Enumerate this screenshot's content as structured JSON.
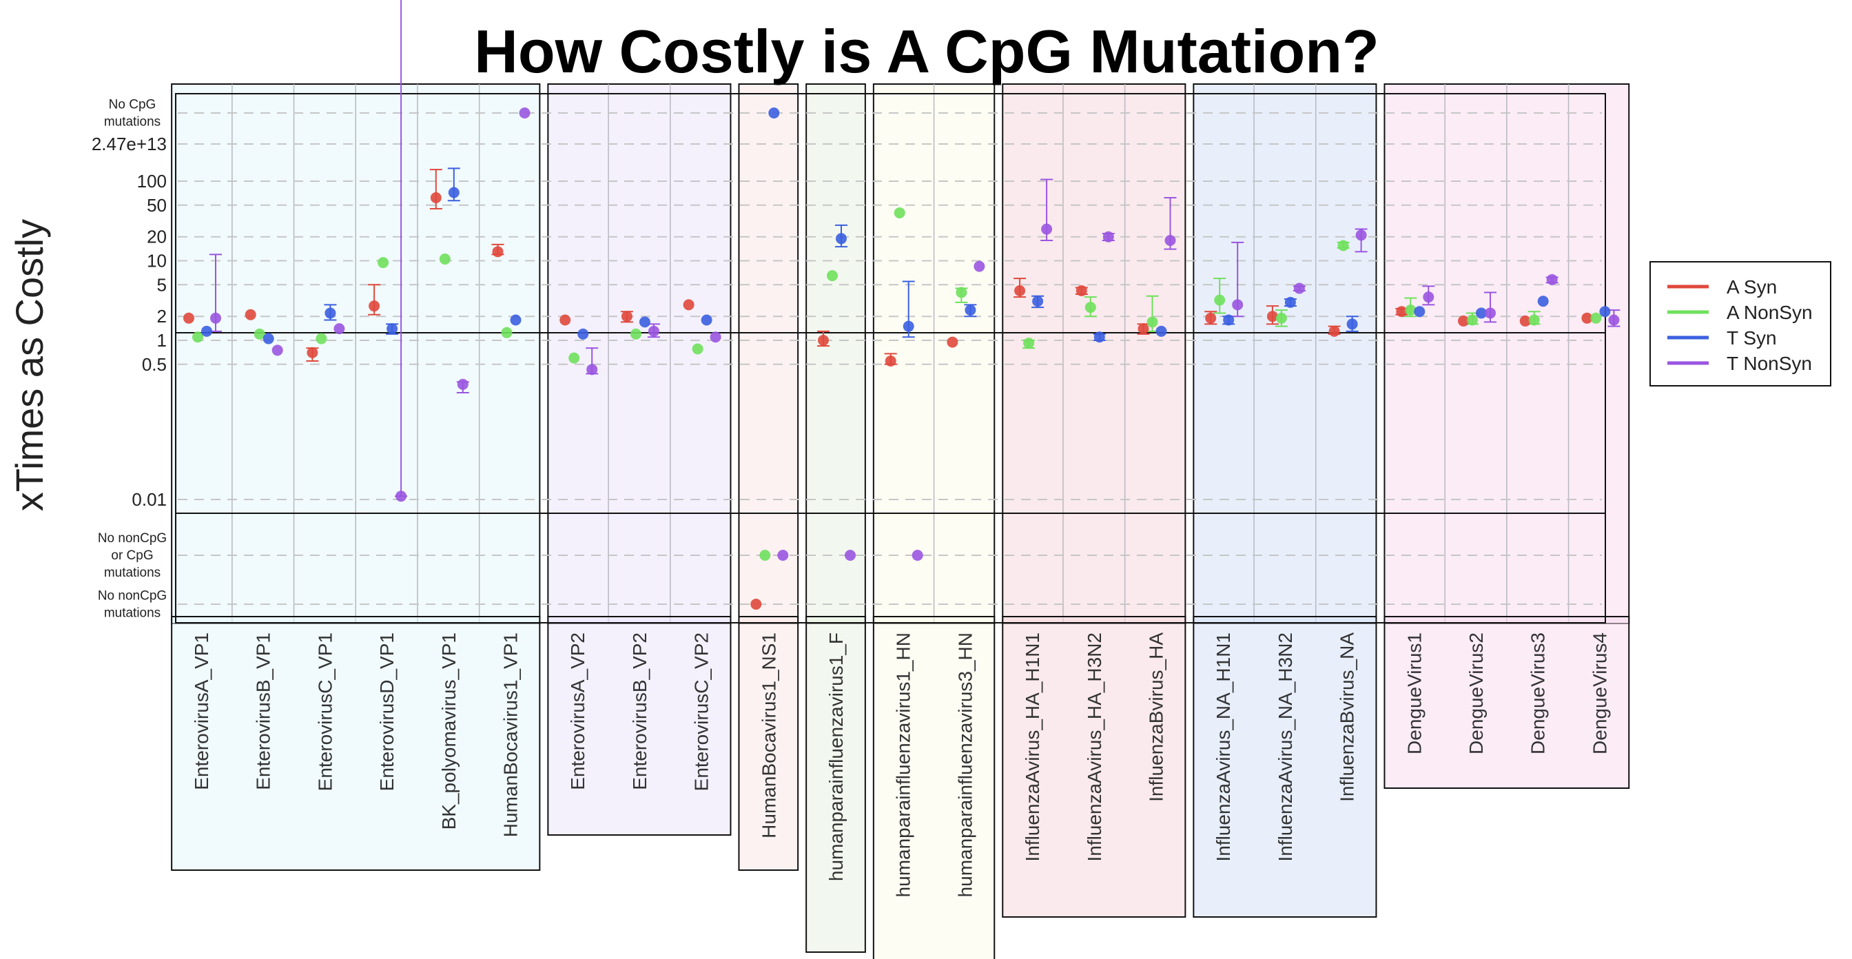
{
  "chart_data": {
    "type": "scatter",
    "title": "How Costly is A CpG Mutation?",
    "ylabel": "xTimes as Costly",
    "y_scale": "log",
    "yticks": [
      "0.01",
      "0.5",
      "1",
      "2",
      "5",
      "10",
      "20",
      "50",
      "100",
      "2.47e+13"
    ],
    "special_rows": [
      "No CpG mutations",
      "No nonCpG or  CpG mutations",
      "No nonCpG mutations"
    ],
    "grid": true,
    "legend_position": "right",
    "series": [
      {
        "name": "A Syn",
        "color": "#e0483c"
      },
      {
        "name": "A NonSyn",
        "color": "#6fe05c"
      },
      {
        "name": "T Syn",
        "color": "#3b5fe0"
      },
      {
        "name": "T NonSyn",
        "color": "#9a55e0"
      }
    ],
    "groups": [
      {
        "color": "#e6f6fc",
        "categories": [
          "EnterovirusA_VP1",
          "EnterovirusB_VP1",
          "EnterovirusC_VP1",
          "EnterovirusD_VP1",
          "BK_polyomavirus_VP1",
          "HumanBocavirus1_VP1"
        ]
      },
      {
        "color": "#ebe6fb",
        "categories": [
          "EnterovirusA_VP2",
          "EnterovirusB_VP2",
          "EnterovirusC_VP2"
        ]
      },
      {
        "color": "#fae8e8",
        "categories": [
          "HumanBocavirus1_NS1"
        ]
      },
      {
        "color": "#e8f3e2",
        "categories": [
          "humanparainfluenzavirus1_F"
        ]
      },
      {
        "color": "#fbfbeb",
        "categories": [
          "humanparainfluenzavirus1_HN",
          "humanparainfluenzavirus3_HN"
        ]
      },
      {
        "color": "#f6d9de",
        "categories": [
          "InfluenzaAvirus_HA_H1N1",
          "InfluenzaAvirus_HA_H3N2",
          "InfluenzaBvirus_HA"
        ]
      },
      {
        "color": "#d6e2f8",
        "categories": [
          "InfluenzaAvirus_NA_H1N1",
          "InfluenzaAvirus_NA_H3N2",
          "InfluenzaBvirus_NA"
        ]
      },
      {
        "color": "#f7dcef",
        "categories": [
          "DengueVirus1",
          "DengueVirus2",
          "DengueVirus3",
          "DengueVirus4"
        ]
      }
    ],
    "points": [
      {
        "category": "EnterovirusA_VP1",
        "series": "A Syn",
        "y": 1.9
      },
      {
        "category": "EnterovirusA_VP1",
        "series": "A NonSyn",
        "y": 1.1
      },
      {
        "category": "EnterovirusA_VP1",
        "series": "T Syn",
        "y": 1.3
      },
      {
        "category": "EnterovirusA_VP1",
        "series": "T NonSyn",
        "y": 1.9,
        "lo": 1.3,
        "hi": 12
      },
      {
        "category": "EnterovirusB_VP1",
        "series": "A Syn",
        "y": 2.1
      },
      {
        "category": "EnterovirusB_VP1",
        "series": "A NonSyn",
        "y": 1.2
      },
      {
        "category": "EnterovirusB_VP1",
        "series": "T Syn",
        "y": 1.05
      },
      {
        "category": "EnterovirusB_VP1",
        "series": "T NonSyn",
        "y": 0.75
      },
      {
        "category": "EnterovirusC_VP1",
        "series": "A Syn",
        "y": 0.7,
        "lo": 0.55,
        "hi": 0.8
      },
      {
        "category": "EnterovirusC_VP1",
        "series": "A NonSyn",
        "y": 1.05
      },
      {
        "category": "EnterovirusC_VP1",
        "series": "T Syn",
        "y": 2.2,
        "lo": 1.8,
        "hi": 2.8
      },
      {
        "category": "EnterovirusC_VP1",
        "series": "T NonSyn",
        "y": 1.4
      },
      {
        "category": "EnterovirusD_VP1",
        "series": "A Syn",
        "y": 2.7,
        "lo": 2.1,
        "hi": 5
      },
      {
        "category": "EnterovirusD_VP1",
        "series": "A NonSyn",
        "y": 9.5
      },
      {
        "category": "EnterovirusD_VP1",
        "series": "T Syn",
        "y": 1.4,
        "lo": 1.2,
        "hi": 1.6
      },
      {
        "category": "EnterovirusD_VP1",
        "series": "T NonSyn",
        "y": 0.011,
        "lo": 0.011,
        "hi": 24000
      },
      {
        "category": "BK_polyomavirus_VP1",
        "series": "A Syn",
        "y": 62,
        "lo": 45,
        "hi": 140
      },
      {
        "category": "BK_polyomavirus_VP1",
        "series": "A NonSyn",
        "y": 10.5
      },
      {
        "category": "BK_polyomavirus_VP1",
        "series": "T Syn",
        "y": 72,
        "lo": 57,
        "hi": 145
      },
      {
        "category": "BK_polyomavirus_VP1",
        "series": "T NonSyn",
        "y": 0.28,
        "lo": 0.22,
        "hi": 0.3
      },
      {
        "category": "HumanBocavirus1_VP1",
        "series": "A Syn",
        "y": 13,
        "lo": 12,
        "hi": 16
      },
      {
        "category": "HumanBocavirus1_VP1",
        "series": "A NonSyn",
        "y": 1.25
      },
      {
        "category": "HumanBocavirus1_VP1",
        "series": "T Syn",
        "y": 1.8
      },
      {
        "category": "HumanBocavirus1_VP1",
        "series": "T NonSyn",
        "special": "No CpG mutations"
      },
      {
        "category": "EnterovirusA_VP2",
        "series": "A Syn",
        "y": 1.8
      },
      {
        "category": "EnterovirusA_VP2",
        "series": "A NonSyn",
        "y": 0.6
      },
      {
        "category": "EnterovirusA_VP2",
        "series": "T Syn",
        "y": 1.2
      },
      {
        "category": "EnterovirusA_VP2",
        "series": "T NonSyn",
        "y": 0.43,
        "lo": 0.38,
        "hi": 0.8
      },
      {
        "category": "EnterovirusB_VP2",
        "series": "A Syn",
        "y": 2,
        "lo": 1.7,
        "hi": 2.3
      },
      {
        "category": "EnterovirusB_VP2",
        "series": "A NonSyn",
        "y": 1.2
      },
      {
        "category": "EnterovirusB_VP2",
        "series": "T Syn",
        "y": 1.7
      },
      {
        "category": "EnterovirusB_VP2",
        "series": "T NonSyn",
        "y": 1.3,
        "lo": 1.1,
        "hi": 1.6
      },
      {
        "category": "EnterovirusC_VP2",
        "series": "A Syn",
        "y": 2.8
      },
      {
        "category": "EnterovirusC_VP2",
        "series": "A NonSyn",
        "y": 0.78
      },
      {
        "category": "EnterovirusC_VP2",
        "series": "T Syn",
        "y": 1.8
      },
      {
        "category": "EnterovirusC_VP2",
        "series": "T NonSyn",
        "y": 1.1
      },
      {
        "category": "HumanBocavirus1_NS1",
        "series": "A Syn",
        "special": "No nonCpG mutations"
      },
      {
        "category": "HumanBocavirus1_NS1",
        "series": "A NonSyn",
        "special": "No nonCpG or  CpG mutations"
      },
      {
        "category": "HumanBocavirus1_NS1",
        "series": "T Syn",
        "special": "No CpG mutations"
      },
      {
        "category": "HumanBocavirus1_NS1",
        "series": "T NonSyn",
        "special": "No nonCpG or  CpG mutations"
      },
      {
        "category": "humanparainfluenzavirus1_F",
        "series": "A Syn",
        "y": 1,
        "lo": 0.85,
        "hi": 1.3
      },
      {
        "category": "humanparainfluenzavirus1_F",
        "series": "A NonSyn",
        "y": 6.5
      },
      {
        "category": "humanparainfluenzavirus1_F",
        "series": "T Syn",
        "y": 19,
        "lo": 15,
        "hi": 28
      },
      {
        "category": "humanparainfluenzavirus1_F",
        "series": "T NonSyn",
        "special": "No nonCpG or  CpG mutations"
      },
      {
        "category": "humanparainfluenzavirus1_HN",
        "series": "A Syn",
        "y": 0.55,
        "lo": 0.5,
        "hi": 0.68
      },
      {
        "category": "humanparainfluenzavirus1_HN",
        "series": "A NonSyn",
        "y": 40
      },
      {
        "category": "humanparainfluenzavirus1_HN",
        "series": "T Syn",
        "y": 1.5,
        "lo": 1.1,
        "hi": 5.5
      },
      {
        "category": "humanparainfluenzavirus1_HN",
        "series": "T NonSyn",
        "special": "No nonCpG or  CpG mutations"
      },
      {
        "category": "humanparainfluenzavirus3_HN",
        "series": "A Syn",
        "y": 0.95
      },
      {
        "category": "humanparainfluenzavirus3_HN",
        "series": "A NonSyn",
        "y": 4,
        "lo": 3,
        "hi": 4.5
      },
      {
        "category": "humanparainfluenzavirus3_HN",
        "series": "T Syn",
        "y": 2.4,
        "lo": 2,
        "hi": 2.8
      },
      {
        "category": "humanparainfluenzavirus3_HN",
        "series": "T NonSyn",
        "y": 8.5
      },
      {
        "category": "InfluenzaAvirus_HA_H1N1",
        "series": "A Syn",
        "y": 4.2,
        "lo": 3.5,
        "hi": 6
      },
      {
        "category": "InfluenzaAvirus_HA_H1N1",
        "series": "A NonSyn",
        "y": 0.92,
        "lo": 0.8,
        "hi": 1
      },
      {
        "category": "InfluenzaAvirus_HA_H1N1",
        "series": "T Syn",
        "y": 3.1,
        "lo": 2.6,
        "hi": 3.6
      },
      {
        "category": "InfluenzaAvirus_HA_H1N1",
        "series": "T NonSyn",
        "y": 25,
        "lo": 18,
        "hi": 105
      },
      {
        "category": "InfluenzaAvirus_HA_H3N2",
        "series": "A Syn",
        "y": 4.2,
        "lo": 3.8,
        "hi": 4.6
      },
      {
        "category": "InfluenzaAvirus_HA_H3N2",
        "series": "A NonSyn",
        "y": 2.6,
        "lo": 2,
        "hi": 3.5
      },
      {
        "category": "InfluenzaAvirus_HA_H3N2",
        "series": "T Syn",
        "y": 1.1,
        "lo": 1,
        "hi": 1.2
      },
      {
        "category": "InfluenzaAvirus_HA_H3N2",
        "series": "T NonSyn",
        "y": 20,
        "lo": 18,
        "hi": 22
      },
      {
        "category": "InfluenzaBvirus_HA",
        "series": "A Syn",
        "y": 1.4,
        "lo": 1.2,
        "hi": 1.6
      },
      {
        "category": "InfluenzaBvirus_HA",
        "series": "A NonSyn",
        "y": 1.7,
        "lo": 1.3,
        "hi": 3.6
      },
      {
        "category": "InfluenzaBvirus_HA",
        "series": "T Syn",
        "y": 1.3
      },
      {
        "category": "InfluenzaBvirus_HA",
        "series": "T NonSyn",
        "y": 18,
        "lo": 14,
        "hi": 62
      },
      {
        "category": "InfluenzaAvirus_NA_H1N1",
        "series": "A Syn",
        "y": 1.9,
        "lo": 1.6,
        "hi": 2.3
      },
      {
        "category": "InfluenzaAvirus_NA_H1N1",
        "series": "A NonSyn",
        "y": 3.2,
        "lo": 2.2,
        "hi": 6
      },
      {
        "category": "InfluenzaAvirus_NA_H1N1",
        "series": "T Syn",
        "y": 1.8,
        "lo": 1.6,
        "hi": 2
      },
      {
        "category": "InfluenzaAvirus_NA_H1N1",
        "series": "T NonSyn",
        "y": 2.8,
        "lo": 2,
        "hi": 17
      },
      {
        "category": "InfluenzaAvirus_NA_H3N2",
        "series": "A Syn",
        "y": 2,
        "lo": 1.6,
        "hi": 2.7
      },
      {
        "category": "InfluenzaAvirus_NA_H3N2",
        "series": "A NonSyn",
        "y": 1.9,
        "lo": 1.5,
        "hi": 2.4
      },
      {
        "category": "InfluenzaAvirus_NA_H3N2",
        "series": "T Syn",
        "y": 3,
        "lo": 2.7,
        "hi": 3.3
      },
      {
        "category": "InfluenzaAvirus_NA_H3N2",
        "series": "T NonSyn",
        "y": 4.5,
        "lo": 4.2,
        "hi": 4.8
      },
      {
        "category": "InfluenzaBvirus_NA",
        "series": "A Syn",
        "y": 1.3,
        "lo": 1.2,
        "hi": 1.5
      },
      {
        "category": "InfluenzaBvirus_NA",
        "series": "A NonSyn",
        "y": 15.5,
        "lo": 14.5,
        "hi": 17
      },
      {
        "category": "InfluenzaBvirus_NA",
        "series": "T Syn",
        "y": 1.6,
        "lo": 1.3,
        "hi": 2
      },
      {
        "category": "InfluenzaBvirus_NA",
        "series": "T NonSyn",
        "y": 21,
        "lo": 13,
        "hi": 25
      },
      {
        "category": "DengueVirus1",
        "series": "A Syn",
        "y": 2.3,
        "lo": 2.1,
        "hi": 2.5
      },
      {
        "category": "DengueVirus1",
        "series": "A NonSyn",
        "y": 2.4,
        "lo": 2,
        "hi": 3.4
      },
      {
        "category": "DengueVirus1",
        "series": "T Syn",
        "y": 2.3
      },
      {
        "category": "DengueVirus1",
        "series": "T NonSyn",
        "y": 3.5,
        "lo": 2.8,
        "hi": 4.8
      },
      {
        "category": "DengueVirus2",
        "series": "A Syn",
        "y": 1.75
      },
      {
        "category": "DengueVirus2",
        "series": "A NonSyn",
        "y": 1.8,
        "lo": 1.6,
        "hi": 2.2
      },
      {
        "category": "DengueVirus2",
        "series": "T Syn",
        "y": 2.2
      },
      {
        "category": "DengueVirus2",
        "series": "T NonSyn",
        "y": 2.2,
        "lo": 1.7,
        "hi": 4
      },
      {
        "category": "DengueVirus3",
        "series": "A Syn",
        "y": 1.75
      },
      {
        "category": "DengueVirus3",
        "series": "A NonSyn",
        "y": 1.8,
        "lo": 1.6,
        "hi": 2.3
      },
      {
        "category": "DengueVirus3",
        "series": "T Syn",
        "y": 3.1
      },
      {
        "category": "DengueVirus3",
        "series": "T NonSyn",
        "y": 5.8,
        "lo": 5.3,
        "hi": 6.2
      },
      {
        "category": "DengueVirus4",
        "series": "A Syn",
        "y": 1.9
      },
      {
        "category": "DengueVirus4",
        "series": "A NonSyn",
        "y": 1.9
      },
      {
        "category": "DengueVirus4",
        "series": "T Syn",
        "y": 2.3
      },
      {
        "category": "DengueVirus4",
        "series": "T NonSyn",
        "y": 1.8,
        "lo": 1.5,
        "hi": 2.4
      }
    ]
  }
}
